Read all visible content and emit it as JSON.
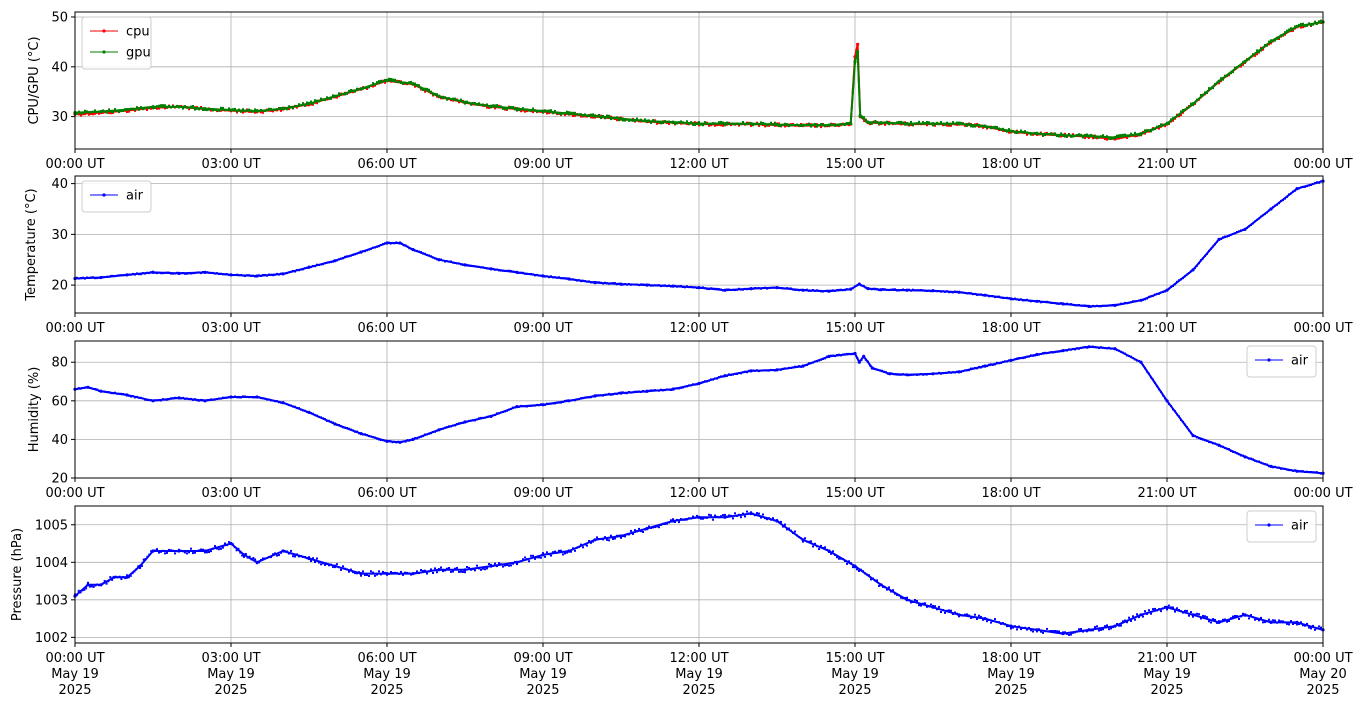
{
  "chart_data": [
    {
      "type": "line",
      "ylabel": "CPU/GPU (°C)",
      "ylim": [
        23.5,
        51
      ],
      "yticks": [
        30,
        40,
        50
      ],
      "grid": true,
      "legend_placement": "upper-left",
      "x_domain": [
        "00:00",
        "24:00"
      ],
      "xtick_labels": [
        "00:00 UT",
        "03:00 UT",
        "06:00 UT",
        "09:00 UT",
        "12:00 UT",
        "15:00 UT",
        "18:00 UT",
        "21:00 UT",
        "00:00 UT"
      ],
      "series": [
        {
          "name": "cpu",
          "color": "#ff0000",
          "x": [
            "00:00",
            "00:30",
            "01:00",
            "01:30",
            "02:00",
            "02:30",
            "03:00",
            "03:30",
            "04:00",
            "04:30",
            "05:00",
            "05:30",
            "06:00",
            "06:30",
            "07:00",
            "07:30",
            "08:00",
            "08:30",
            "09:00",
            "09:30",
            "10:00",
            "10:30",
            "11:00",
            "11:30",
            "12:00",
            "12:30",
            "13:00",
            "13:30",
            "14:00",
            "14:30",
            "14:55",
            "15:00",
            "15:03",
            "15:06",
            "15:15",
            "15:30",
            "16:00",
            "16:30",
            "17:00",
            "17:30",
            "18:00",
            "18:30",
            "19:00",
            "19:30",
            "20:00",
            "20:30",
            "21:00",
            "21:30",
            "22:00",
            "22:30",
            "23:00",
            "23:30",
            "24:00"
          ],
          "values": [
            30.5,
            30.8,
            31.2,
            31.8,
            32.0,
            31.5,
            31.2,
            31.0,
            31.5,
            32.5,
            34.0,
            35.5,
            37.2,
            36.5,
            34.0,
            32.8,
            32.0,
            31.5,
            31.0,
            30.5,
            30.0,
            29.5,
            29.0,
            28.8,
            28.5,
            28.5,
            28.5,
            28.3,
            28.2,
            28.2,
            28.5,
            42.0,
            44.5,
            30.0,
            28.8,
            28.7,
            28.5,
            28.5,
            28.5,
            28.0,
            27.0,
            26.5,
            26.2,
            26.0,
            25.5,
            26.5,
            28.5,
            32.5,
            37.0,
            41.0,
            45.0,
            48.0,
            49.0
          ]
        },
        {
          "name": "gpu",
          "color": "#008000",
          "x": [
            "00:00",
            "00:30",
            "01:00",
            "01:30",
            "02:00",
            "02:30",
            "03:00",
            "03:30",
            "04:00",
            "04:30",
            "05:00",
            "05:30",
            "06:00",
            "06:30",
            "07:00",
            "07:30",
            "08:00",
            "08:30",
            "09:00",
            "09:30",
            "10:00",
            "10:30",
            "11:00",
            "11:30",
            "12:00",
            "12:30",
            "13:00",
            "13:30",
            "14:00",
            "14:30",
            "14:55",
            "15:00",
            "15:03",
            "15:06",
            "15:15",
            "15:30",
            "16:00",
            "16:30",
            "17:00",
            "17:30",
            "18:00",
            "18:30",
            "19:00",
            "19:30",
            "20:00",
            "20:30",
            "21:00",
            "21:30",
            "22:00",
            "22:30",
            "23:00",
            "23:30",
            "24:00"
          ],
          "values": [
            30.8,
            31.0,
            31.4,
            32.0,
            32.0,
            31.6,
            31.3,
            31.1,
            31.6,
            32.6,
            34.1,
            35.6,
            37.3,
            36.6,
            34.1,
            32.9,
            32.1,
            31.6,
            31.1,
            30.6,
            30.1,
            29.6,
            29.1,
            28.9,
            28.6,
            28.6,
            28.6,
            28.4,
            28.3,
            28.3,
            28.6,
            41.0,
            43.0,
            30.2,
            28.9,
            28.8,
            28.6,
            28.6,
            28.6,
            28.1,
            27.1,
            26.6,
            26.3,
            26.1,
            25.8,
            26.6,
            28.6,
            32.6,
            37.1,
            41.1,
            45.1,
            48.1,
            49.0
          ]
        }
      ]
    },
    {
      "type": "line",
      "ylabel": "Temperature (°C)",
      "ylim": [
        14.5,
        41.5
      ],
      "yticks": [
        20,
        30,
        40
      ],
      "grid": true,
      "legend_placement": "upper-left",
      "x_domain": [
        "00:00",
        "24:00"
      ],
      "xtick_labels": [
        "00:00 UT",
        "03:00 UT",
        "06:00 UT",
        "09:00 UT",
        "12:00 UT",
        "15:00 UT",
        "18:00 UT",
        "21:00 UT",
        "00:00 UT"
      ],
      "series": [
        {
          "name": "air",
          "color": "#0000ff",
          "x": [
            "00:00",
            "00:30",
            "01:00",
            "01:30",
            "02:00",
            "02:30",
            "03:00",
            "03:30",
            "04:00",
            "04:30",
            "05:00",
            "05:30",
            "06:00",
            "06:15",
            "06:30",
            "07:00",
            "07:30",
            "08:00",
            "08:30",
            "09:00",
            "09:30",
            "10:00",
            "10:30",
            "11:00",
            "11:30",
            "12:00",
            "12:30",
            "13:00",
            "13:30",
            "14:00",
            "14:30",
            "14:55",
            "15:05",
            "15:15",
            "15:30",
            "16:00",
            "16:30",
            "17:00",
            "17:30",
            "18:00",
            "18:30",
            "19:00",
            "19:30",
            "20:00",
            "20:30",
            "21:00",
            "21:30",
            "22:00",
            "22:30",
            "23:00",
            "23:30",
            "24:00"
          ],
          "values": [
            21.3,
            21.5,
            22.0,
            22.5,
            22.3,
            22.5,
            22.0,
            21.8,
            22.2,
            23.5,
            24.8,
            26.5,
            28.3,
            28.3,
            27.0,
            25.0,
            24.0,
            23.2,
            22.5,
            21.8,
            21.2,
            20.5,
            20.2,
            20.0,
            19.8,
            19.5,
            19.0,
            19.3,
            19.5,
            19.0,
            18.8,
            19.2,
            20.2,
            19.3,
            19.1,
            19.0,
            18.9,
            18.6,
            18.0,
            17.3,
            16.8,
            16.3,
            15.8,
            16.0,
            17.0,
            19.0,
            23.0,
            29.0,
            31.0,
            35.0,
            39.0,
            40.5
          ]
        }
      ]
    },
    {
      "type": "line",
      "ylabel": "Humidity (%)",
      "ylim": [
        20,
        91
      ],
      "yticks": [
        20,
        40,
        60,
        80
      ],
      "grid": true,
      "legend_placement": "upper-right",
      "x_domain": [
        "00:00",
        "24:00"
      ],
      "xtick_labels": [
        "00:00 UT",
        "03:00 UT",
        "06:00 UT",
        "09:00 UT",
        "12:00 UT",
        "15:00 UT",
        "18:00 UT",
        "21:00 UT",
        "00:00 UT"
      ],
      "series": [
        {
          "name": "air",
          "color": "#0000ff",
          "x": [
            "00:00",
            "00:15",
            "00:30",
            "01:00",
            "01:30",
            "02:00",
            "02:30",
            "03:00",
            "03:30",
            "04:00",
            "04:30",
            "05:00",
            "05:30",
            "06:00",
            "06:15",
            "06:30",
            "07:00",
            "07:30",
            "08:00",
            "08:30",
            "09:00",
            "09:30",
            "10:00",
            "10:30",
            "11:00",
            "11:30",
            "12:00",
            "12:30",
            "13:00",
            "13:30",
            "14:00",
            "14:30",
            "15:00",
            "15:05",
            "15:10",
            "15:20",
            "15:40",
            "16:00",
            "16:30",
            "17:00",
            "17:30",
            "18:00",
            "18:30",
            "19:00",
            "19:30",
            "20:00",
            "20:30",
            "21:00",
            "21:30",
            "22:00",
            "22:30",
            "23:00",
            "23:30",
            "24:00"
          ],
          "values": [
            66.0,
            67.0,
            65.0,
            63.0,
            60.0,
            61.5,
            60.0,
            62.0,
            62.0,
            59.0,
            54.0,
            48.0,
            43.0,
            39.0,
            38.5,
            40.0,
            45.0,
            49.0,
            52.0,
            57.0,
            58.0,
            60.0,
            62.5,
            64.0,
            65.0,
            66.0,
            69.0,
            73.0,
            75.5,
            76.0,
            78.0,
            83.0,
            84.5,
            80.0,
            83.0,
            77.0,
            74.0,
            73.5,
            74.0,
            75.0,
            78.0,
            81.0,
            84.0,
            86.0,
            88.0,
            87.0,
            80.0,
            60.0,
            42.0,
            37.0,
            31.0,
            26.0,
            23.5,
            22.5
          ]
        }
      ]
    },
    {
      "type": "line",
      "ylabel": "Pressure (hPa)",
      "ylim": [
        1001.85,
        1005.5
      ],
      "yticks": [
        1002,
        1003,
        1004,
        1005
      ],
      "grid": true,
      "legend_placement": "upper-right",
      "x_domain": [
        "00:00",
        "24:00"
      ],
      "xtick_labels": [
        "00:00 UT\nMay 19\n2025",
        "03:00 UT\nMay 19\n2025",
        "06:00 UT\nMay 19\n2025",
        "09:00 UT\nMay 19\n2025",
        "12:00 UT\nMay 19\n2025",
        "15:00 UT\nMay 19\n2025",
        "18:00 UT\nMay 19\n2025",
        "21:00 UT\nMay 19\n2025",
        "00:00 UT\nMay 20\n2025"
      ],
      "series": [
        {
          "name": "air",
          "color": "#0000ff",
          "x": [
            "00:00",
            "00:15",
            "00:30",
            "00:45",
            "01:00",
            "01:15",
            "01:30",
            "02:00",
            "02:30",
            "03:00",
            "03:15",
            "03:30",
            "04:00",
            "04:30",
            "05:00",
            "05:30",
            "06:00",
            "06:30",
            "07:00",
            "07:30",
            "08:00",
            "08:30",
            "09:00",
            "09:30",
            "10:00",
            "10:30",
            "11:00",
            "11:30",
            "12:00",
            "12:30",
            "13:00",
            "13:30",
            "14:00",
            "14:30",
            "15:00",
            "15:30",
            "16:00",
            "16:30",
            "17:00",
            "17:30",
            "18:00",
            "18:30",
            "19:00",
            "19:30",
            "20:00",
            "20:30",
            "21:00",
            "21:30",
            "22:00",
            "22:30",
            "23:00",
            "23:30",
            "24:00"
          ],
          "values": [
            1003.1,
            1003.4,
            1003.4,
            1003.6,
            1003.6,
            1003.9,
            1004.3,
            1004.3,
            1004.3,
            1004.5,
            1004.2,
            1004.0,
            1004.3,
            1004.1,
            1003.9,
            1003.7,
            1003.7,
            1003.7,
            1003.8,
            1003.8,
            1003.9,
            1004.0,
            1004.2,
            1004.3,
            1004.6,
            1004.7,
            1004.9,
            1005.1,
            1005.2,
            1005.2,
            1005.3,
            1005.1,
            1004.6,
            1004.3,
            1003.9,
            1003.4,
            1003.0,
            1002.8,
            1002.6,
            1002.5,
            1002.3,
            1002.2,
            1002.1,
            1002.2,
            1002.3,
            1002.6,
            1002.8,
            1002.6,
            1002.4,
            1002.6,
            1002.4,
            1002.4,
            1002.2
          ]
        }
      ]
    }
  ]
}
